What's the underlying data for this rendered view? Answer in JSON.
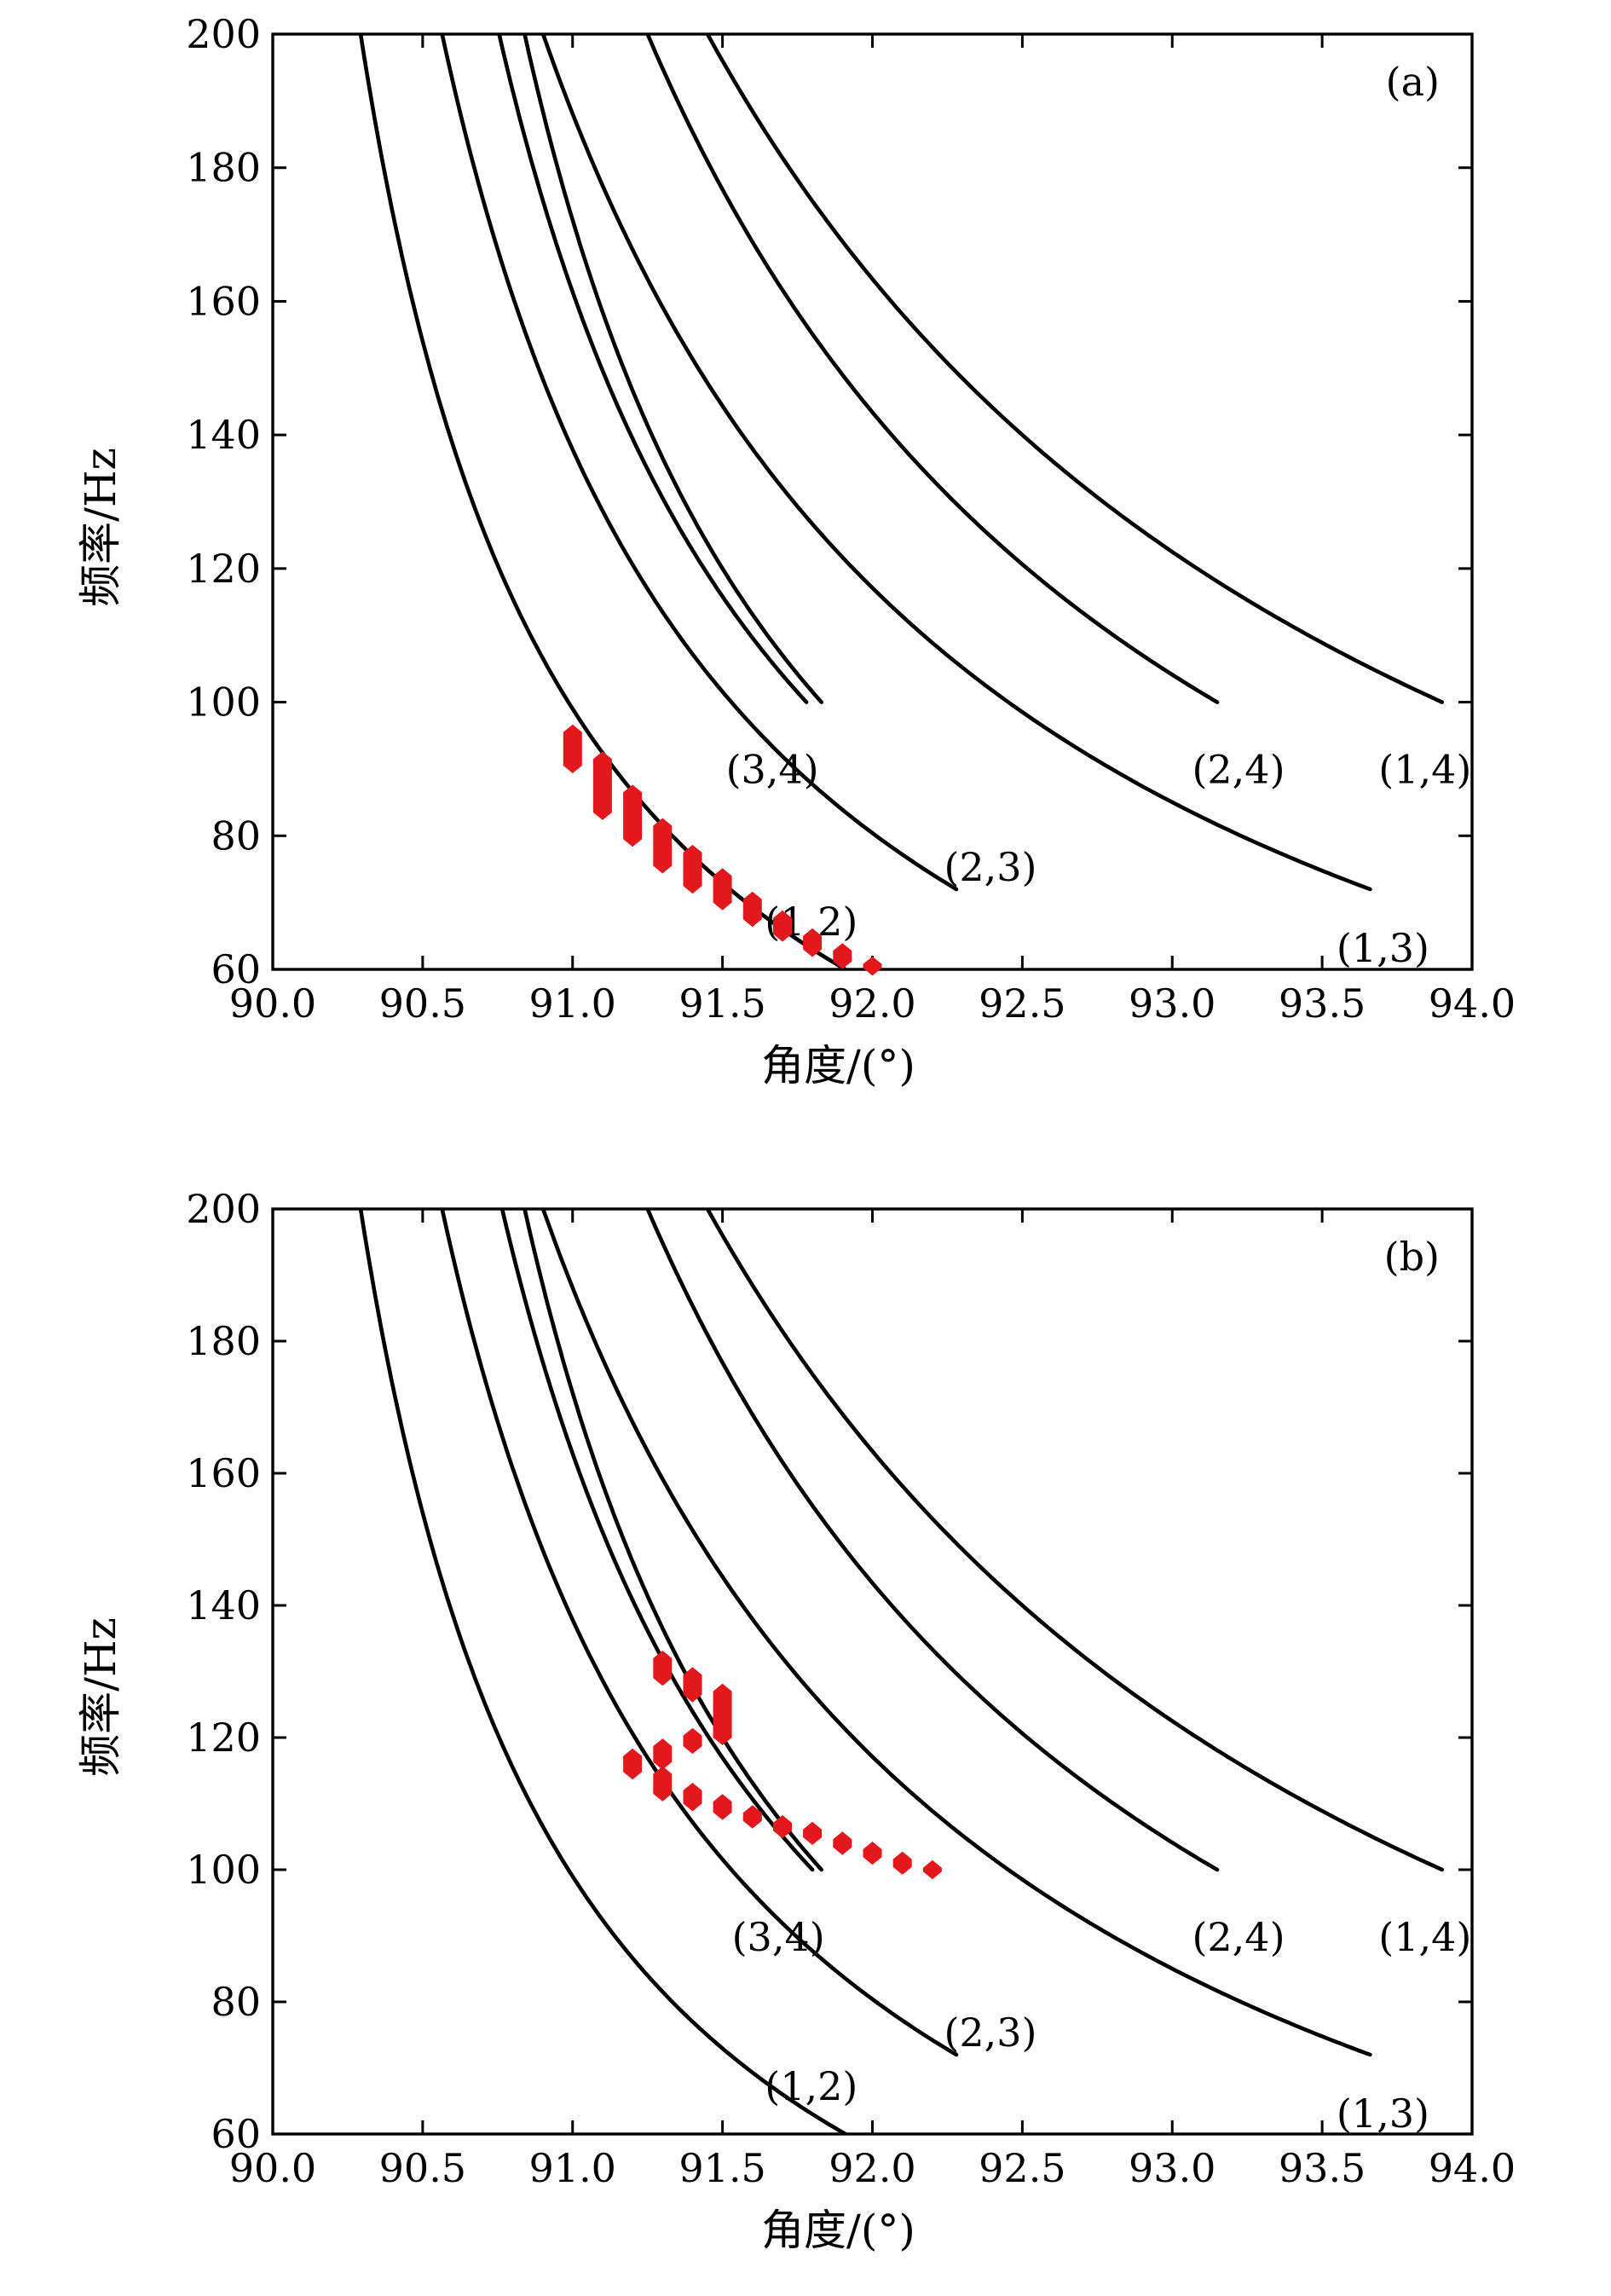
{
  "marker_color": "#e3171c",
  "curve_color": "#000000",
  "chart_data": [
    {
      "type": "line",
      "panel_label": "(a)",
      "xlabel": "角度/(°)",
      "ylabel": "频率/Hz",
      "xlim": [
        90.0,
        94.0
      ],
      "ylim": [
        60,
        200
      ],
      "xticks": [
        "90.0",
        "90.5",
        "91.0",
        "91.5",
        "92.0",
        "92.5",
        "93.0",
        "93.5",
        "94.0"
      ],
      "yticks": [
        "60",
        "80",
        "100",
        "120",
        "140",
        "160",
        "180",
        "200"
      ],
      "series": [
        {
          "name": "(1,2)",
          "x0": 89.6,
          "f_end": 60,
          "x_end": 91.91
        },
        {
          "name": "(2,3)",
          "x0": 89.6,
          "f_end": 72,
          "x_end": 92.28
        },
        {
          "name": "(3,4)",
          "x0": 89.73,
          "f_end": 100,
          "x_end": 91.78
        },
        {
          "name": "(1,3)",
          "x0": 89.35,
          "f_end": 72,
          "x_end": 93.66
        },
        {
          "name": "(2,4)",
          "x0": 89.35,
          "f_end": 100,
          "x_end": 93.15
        },
        {
          "name": "(1,4)",
          "x0": 89.0,
          "f_end": 100,
          "x_end": 93.9
        },
        {
          "name": "",
          "x0": 89.85,
          "f_end": 100,
          "x_end": 91.83
        }
      ],
      "markers": [
        {
          "x": 91.0,
          "y": 93,
          "dy": 2.5
        },
        {
          "x": 91.1,
          "y": 87.5,
          "dy": 4
        },
        {
          "x": 91.2,
          "y": 83,
          "dy": 3.5
        },
        {
          "x": 91.3,
          "y": 78.5,
          "dy": 3
        },
        {
          "x": 91.4,
          "y": 75,
          "dy": 2.5
        },
        {
          "x": 91.5,
          "y": 72,
          "dy": 2
        },
        {
          "x": 91.6,
          "y": 69,
          "dy": 1.5
        },
        {
          "x": 91.7,
          "y": 66.5,
          "dy": 1.2
        },
        {
          "x": 91.8,
          "y": 64,
          "dy": 1
        },
        {
          "x": 91.9,
          "y": 62,
          "dy": 0.8
        },
        {
          "x": 92.0,
          "y": 60.5,
          "dy": 0.3
        }
      ]
    },
    {
      "type": "line",
      "panel_label": "(b)",
      "xlabel": "角度/(°)",
      "ylabel": "频率/Hz",
      "xlim": [
        90.0,
        94.0
      ],
      "ylim": [
        60,
        200
      ],
      "xticks": [
        "90.0",
        "90.5",
        "91.0",
        "91.5",
        "92.0",
        "92.5",
        "93.0",
        "93.5",
        "94.0"
      ],
      "yticks": [
        "60",
        "80",
        "100",
        "120",
        "140",
        "160",
        "180",
        "200"
      ],
      "series": [
        {
          "name": "(1,2)",
          "x0": 89.6,
          "f_end": 60,
          "x_end": 91.91
        },
        {
          "name": "(2,3)",
          "x0": 89.6,
          "f_end": 72,
          "x_end": 92.28
        },
        {
          "name": "(3,4)",
          "x0": 89.73,
          "f_end": 100,
          "x_end": 91.8
        },
        {
          "name": "(1,3)",
          "x0": 89.35,
          "f_end": 72,
          "x_end": 93.66
        },
        {
          "name": "(2,4)",
          "x0": 89.35,
          "f_end": 100,
          "x_end": 93.15
        },
        {
          "name": "(1,4)",
          "x0": 89.0,
          "f_end": 100,
          "x_end": 93.9
        },
        {
          "name": "",
          "x0": 89.85,
          "f_end": 100,
          "x_end": 91.83
        }
      ],
      "markers": [
        {
          "x": 91.2,
          "y": 116,
          "dy": 1.2
        },
        {
          "x": 91.3,
          "y": 130.5,
          "dy": 1.5
        },
        {
          "x": 91.3,
          "y": 117.5,
          "dy": 1.2
        },
        {
          "x": 91.3,
          "y": 113,
          "dy": 1.5
        },
        {
          "x": 91.4,
          "y": 128,
          "dy": 1.5
        },
        {
          "x": 91.4,
          "y": 119.5,
          "dy": 0.8
        },
        {
          "x": 91.4,
          "y": 111,
          "dy": 1
        },
        {
          "x": 91.5,
          "y": 123.5,
          "dy": 3.5
        },
        {
          "x": 91.5,
          "y": 109.5,
          "dy": 0.8
        },
        {
          "x": 91.6,
          "y": 108,
          "dy": 0.6
        },
        {
          "x": 91.7,
          "y": 106.5,
          "dy": 0.6
        },
        {
          "x": 91.8,
          "y": 105.5,
          "dy": 0.6
        },
        {
          "x": 91.9,
          "y": 104,
          "dy": 0.6
        },
        {
          "x": 92.0,
          "y": 102.5,
          "dy": 0.6
        },
        {
          "x": 92.1,
          "y": 101,
          "dy": 0.6
        },
        {
          "x": 92.2,
          "y": 100,
          "dy": 0.3
        }
      ]
    }
  ]
}
